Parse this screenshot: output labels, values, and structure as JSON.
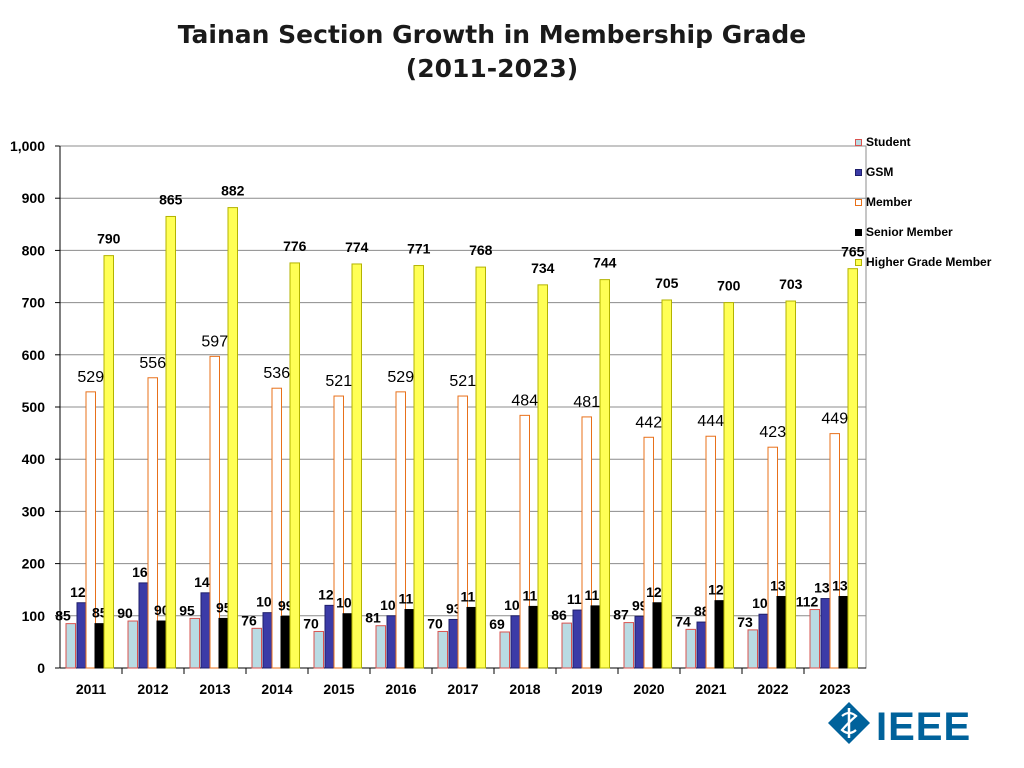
{
  "chart_data": {
    "type": "bar",
    "title": "Tainan Section Growth in Membership Grade",
    "subtitle": "(2011-2023)",
    "xlabel": "",
    "ylabel": "",
    "ylim": [
      0,
      1000
    ],
    "yticks": [
      "0",
      "100",
      "200",
      "300",
      "400",
      "500",
      "600",
      "700",
      "800",
      "900",
      "1,000"
    ],
    "categories": [
      "2011",
      "2012",
      "2013",
      "2014",
      "2015",
      "2016",
      "2017",
      "2018",
      "2019",
      "2020",
      "2021",
      "2022",
      "2023"
    ],
    "grid": true,
    "legend_position": "right",
    "series": [
      {
        "name": "Student",
        "color": "#b9dbe3",
        "border": "#d9534f",
        "values": [
          85,
          90,
          95,
          76,
          70,
          81,
          70,
          69,
          86,
          87,
          74,
          73,
          112
        ]
      },
      {
        "name": "GSM",
        "color": "#3b3ba7",
        "border": "#1f1f6b",
        "values": [
          125,
          163,
          144,
          106,
          120,
          100,
          93,
          100,
          111,
          99,
          88,
          103,
          133
        ]
      },
      {
        "name": "Member",
        "color": "#ffffff",
        "border": "#e8701a",
        "values": [
          529,
          556,
          597,
          536,
          521,
          529,
          521,
          484,
          481,
          442,
          444,
          423,
          449
        ]
      },
      {
        "name": "Senior Member",
        "color": "#000000",
        "border": "#000000",
        "values": [
          85,
          90,
          95,
          99,
          104,
          112,
          116,
          118,
          119,
          125,
          129,
          137,
          137
        ]
      },
      {
        "name": "Higher Grade Member",
        "color": "#ffff55",
        "border": "#b3b300",
        "values": [
          790,
          865,
          882,
          776,
          774,
          771,
          768,
          734,
          744,
          705,
          700,
          703,
          765
        ]
      }
    ]
  },
  "logo": {
    "text": "IEEE",
    "color": "#00629b"
  }
}
